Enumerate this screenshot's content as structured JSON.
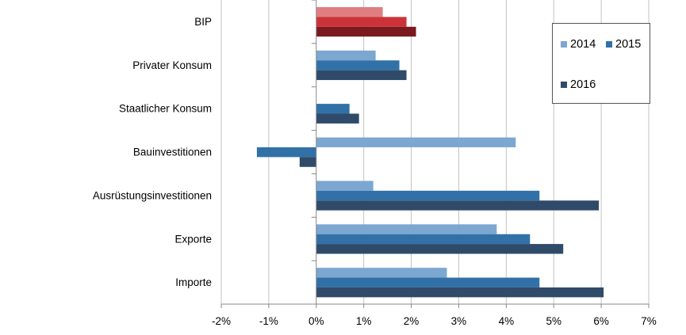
{
  "chart_data": {
    "type": "bar",
    "orientation": "horizontal",
    "categories": [
      "BIP",
      "Privater Konsum",
      "Staatlicher Konsum",
      "Bauinvestitionen",
      "Ausrüstungsinvestitionen",
      "Exporte",
      "Importe"
    ],
    "series": [
      {
        "name": "2014",
        "values": [
          1.4,
          1.25,
          0.0,
          4.2,
          1.2,
          3.8,
          2.75
        ],
        "color": "#7ba7d1"
      },
      {
        "name": "2015",
        "values": [
          1.9,
          1.75,
          0.7,
          -1.25,
          4.7,
          4.5,
          4.7
        ],
        "color": "#3271a7"
      },
      {
        "name": "2016",
        "values": [
          2.1,
          1.9,
          0.9,
          -0.35,
          5.95,
          5.2,
          6.05
        ],
        "color": "#2f4b69"
      }
    ],
    "highlight_colors": {
      "BIP": [
        "#e07d80",
        "#cc3338",
        "#7a1a1e"
      ]
    },
    "xlim": [
      -2,
      7
    ],
    "x_ticks": [
      "-2%",
      "-1%",
      "0%",
      "1%",
      "2%",
      "3%",
      "4%",
      "5%",
      "6%",
      "7%"
    ],
    "grid": true,
    "legend_position": "top-right"
  },
  "legend": {
    "items": [
      {
        "label": "2014",
        "color": "#7ba7d1"
      },
      {
        "label": "2015",
        "color": "#3271a7"
      },
      {
        "label": "2016",
        "color": "#2f4b69"
      }
    ]
  }
}
